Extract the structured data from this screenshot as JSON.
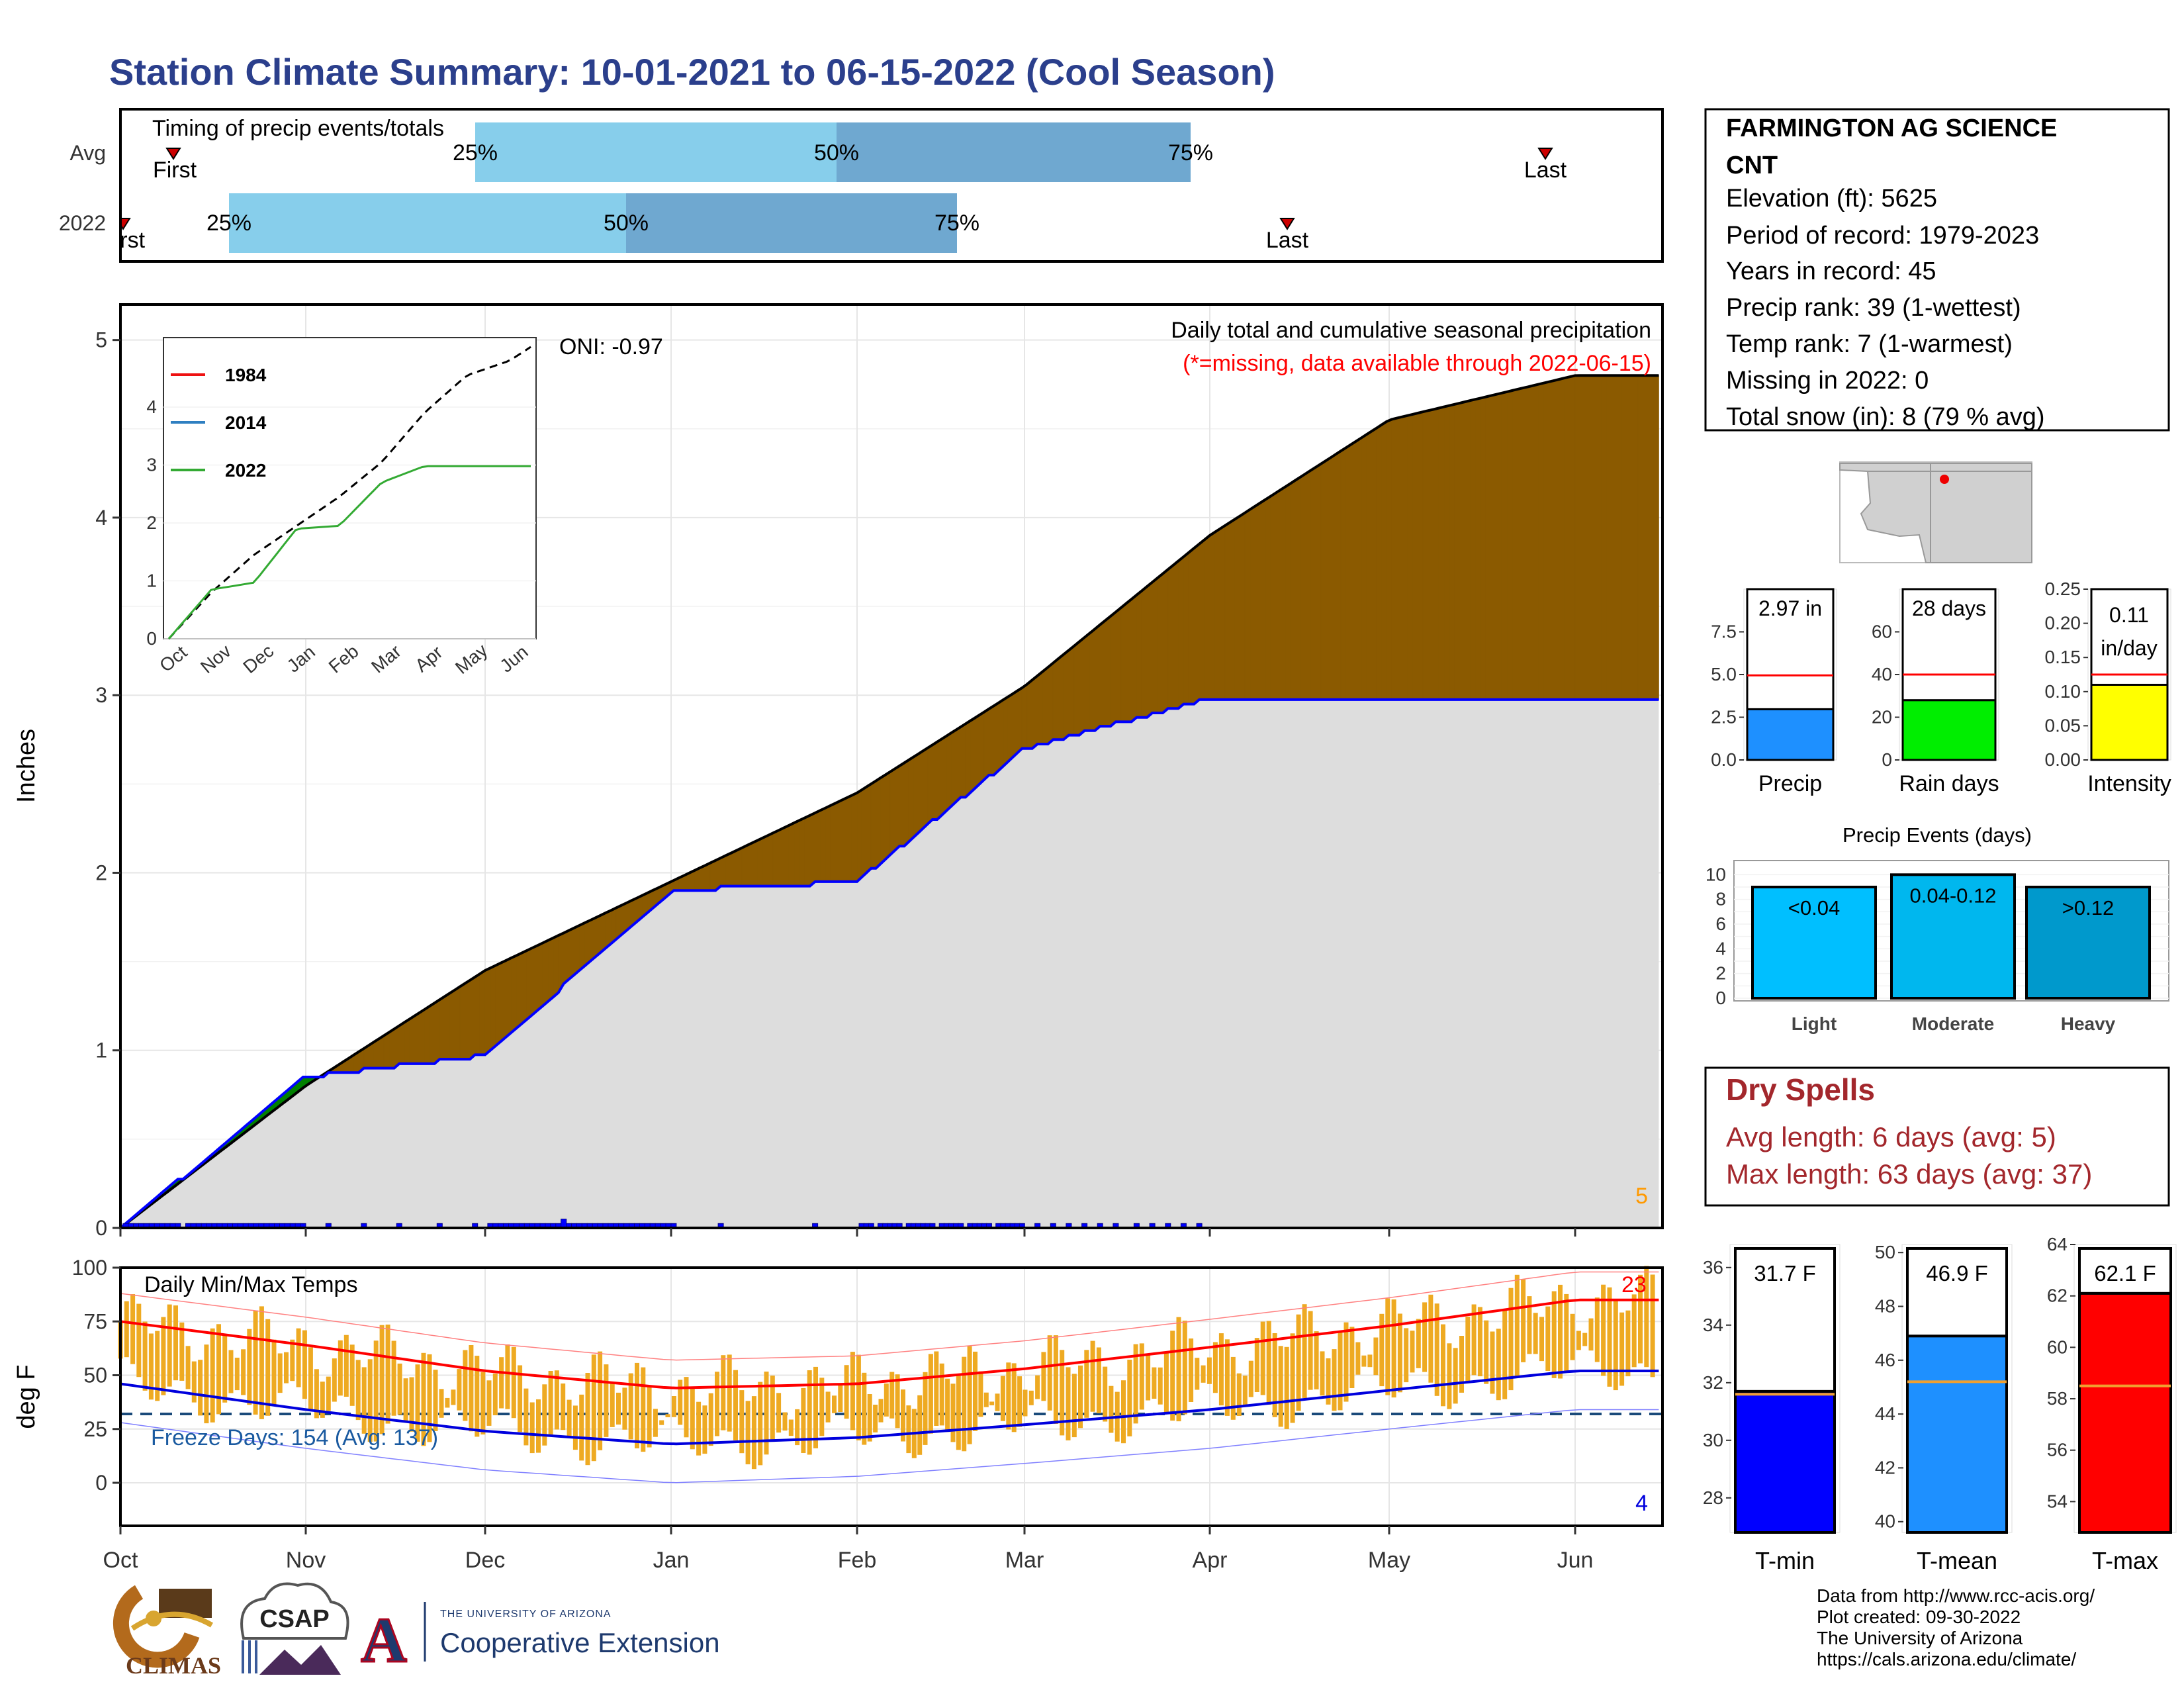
{
  "title": "Station Climate Summary: 10-01-2021 to 06-15-2022 (Cool Season)",
  "timing": {
    "label": "Timing of precip events/totals",
    "rows": [
      {
        "name": "Avg",
        "first": "First",
        "last": "Last",
        "q25": "25%",
        "q50": "50%",
        "q75": "75%"
      },
      {
        "name": "2022",
        "first": "First",
        "last": "Last",
        "q25": "25%",
        "q50": "50%",
        "q75": "75%"
      }
    ]
  },
  "station": {
    "name_line1": "FARMINGTON AG SCIENCE",
    "name_line2": "CNT",
    "lines": [
      "Elevation (ft): 5625",
      "Period of record: 1979-2023",
      "Years in record: 45",
      "Precip rank: 39 (1-wettest)",
      "Temp rank: 7 (1-warmest)",
      "Missing in 2022: 0",
      "Total snow (in): 8 (79 % avg)"
    ]
  },
  "precip_panel": {
    "ylabel": "Inches",
    "title_line1": "Daily total and cumulative seasonal precipitation",
    "title_line2": "(*=missing, data available through 2022-06-15)",
    "oni": "ONI: -0.97",
    "corner_count": "5",
    "yticks": [
      "0",
      "1",
      "2",
      "3",
      "4",
      "5"
    ]
  },
  "inset": {
    "legend": [
      "1984",
      "2014",
      "2022"
    ],
    "yticks": [
      "0",
      "1",
      "2",
      "3",
      "4"
    ],
    "xticks": [
      "Oct",
      "Nov",
      "Dec",
      "Jan",
      "Feb",
      "Mar",
      "Apr",
      "May",
      "Jun"
    ]
  },
  "temp_panel": {
    "ylabel": "deg F",
    "label": "Daily Min/Max Temps",
    "freeze": "Freeze Days: 154 (Avg: 137)",
    "max_count": "23",
    "min_count": "4",
    "yticks": [
      "0",
      "25",
      "50",
      "75",
      "100"
    ]
  },
  "months": [
    "Oct",
    "Nov",
    "Dec",
    "Jan",
    "Feb",
    "Mar",
    "Apr",
    "May",
    "Jun"
  ],
  "bars_small": {
    "precip": {
      "value": "2.97 in",
      "label": "Precip",
      "yticks": [
        "0.0",
        "2.5",
        "5.0",
        "7.5"
      ]
    },
    "raindays": {
      "value": "28 days",
      "label": "Rain days",
      "yticks": [
        "0",
        "20",
        "40",
        "60"
      ]
    },
    "intensity": {
      "value1": "0.11",
      "value2": "in/day",
      "label": "Intensity",
      "yticks": [
        "0.00",
        "0.05",
        "0.10",
        "0.15",
        "0.20",
        "0.25"
      ]
    }
  },
  "events": {
    "title": "Precip Events (days)",
    "yticks": [
      "0",
      "2",
      "4",
      "6",
      "8",
      "10"
    ],
    "bars": [
      {
        "label": "<0.04",
        "name": "Light"
      },
      {
        "label": "0.04-0.12",
        "name": "Moderate"
      },
      {
        "label": ">0.12",
        "name": "Heavy"
      }
    ]
  },
  "dry_spells": {
    "title": "Dry Spells",
    "avg": "Avg length: 6 days (avg: 5)",
    "max": "Max length: 63 days (avg: 37)"
  },
  "temp_bars": {
    "tmin": {
      "value": "31.7 F",
      "label": "T-min",
      "yticks": [
        "28",
        "30",
        "32",
        "34",
        "36"
      ]
    },
    "tmean": {
      "value": "46.9 F",
      "label": "T-mean",
      "yticks": [
        "40",
        "42",
        "44",
        "46",
        "48",
        "50"
      ]
    },
    "tmax": {
      "value": "62.1 F",
      "label": "T-max",
      "yticks": [
        "54",
        "56",
        "58",
        "60",
        "62",
        "64"
      ]
    }
  },
  "credits": [
    "Data from http://www.rcc-acis.org/",
    "Plot created: 09-30-2022",
    "The University of Arizona",
    "https://cals.arizona.edu/climate/"
  ],
  "logos": {
    "climas": "CLIMAS",
    "csap": "CSAP",
    "ua_top": "THE UNIVERSITY OF ARIZONA",
    "ua_bottom": "Cooperative Extension",
    "ua_letter": "A"
  },
  "colors": {
    "title": "#2b3f8c",
    "cum_2022": "#0000ff",
    "above": "#008000",
    "below": "#8b5a00",
    "avg_fill": "#dddddd",
    "light_blue": "#87ceeb",
    "mid_blue": "#6fa8d0",
    "temp_bar": "#eeaa22",
    "tmax_line": "#ff0000",
    "tmin_line": "#0000dd",
    "dry": "#a3272c"
  },
  "chart_data": [
    {
      "type": "area",
      "title": "Daily total and cumulative seasonal precipitation",
      "ylabel": "Inches",
      "ylim": [
        0,
        5.2
      ],
      "x": [
        "Oct",
        "Nov",
        "Dec",
        "Jan",
        "Feb",
        "Mar",
        "Apr",
        "May",
        "Jun"
      ],
      "series": [
        {
          "name": "cumulative 2022",
          "values": [
            0.0,
            0.85,
            0.97,
            1.9,
            1.95,
            2.7,
            2.98,
            2.98,
            2.98
          ]
        },
        {
          "name": "cumulative average",
          "values": [
            0.0,
            0.8,
            1.45,
            1.95,
            2.45,
            3.05,
            3.9,
            4.55,
            4.8
          ]
        }
      ]
    },
    {
      "type": "line",
      "title": "Daily Min/Max Temps",
      "ylabel": "deg F",
      "ylim": [
        -20,
        100
      ],
      "x": [
        "Oct",
        "Nov",
        "Dec",
        "Jan",
        "Feb",
        "Mar",
        "Apr",
        "May",
        "Jun"
      ],
      "series": [
        {
          "name": "avg max",
          "values": [
            75,
            64,
            52,
            44,
            46,
            53,
            63,
            73,
            85
          ]
        },
        {
          "name": "avg min",
          "values": [
            46,
            34,
            24,
            18,
            21,
            27,
            34,
            43,
            52
          ]
        }
      ]
    },
    {
      "type": "bar",
      "categories": [
        "Precip",
        "Rain days",
        "Intensity"
      ],
      "values": [
        2.97,
        28,
        0.11
      ]
    },
    {
      "type": "bar",
      "title": "Precip Events (days)",
      "categories": [
        "Light",
        "Moderate",
        "Heavy"
      ],
      "values": [
        9,
        10,
        9
      ]
    },
    {
      "type": "bar",
      "categories": [
        "T-min",
        "T-mean",
        "T-max"
      ],
      "values": [
        31.7,
        46.9,
        62.1
      ]
    }
  ]
}
